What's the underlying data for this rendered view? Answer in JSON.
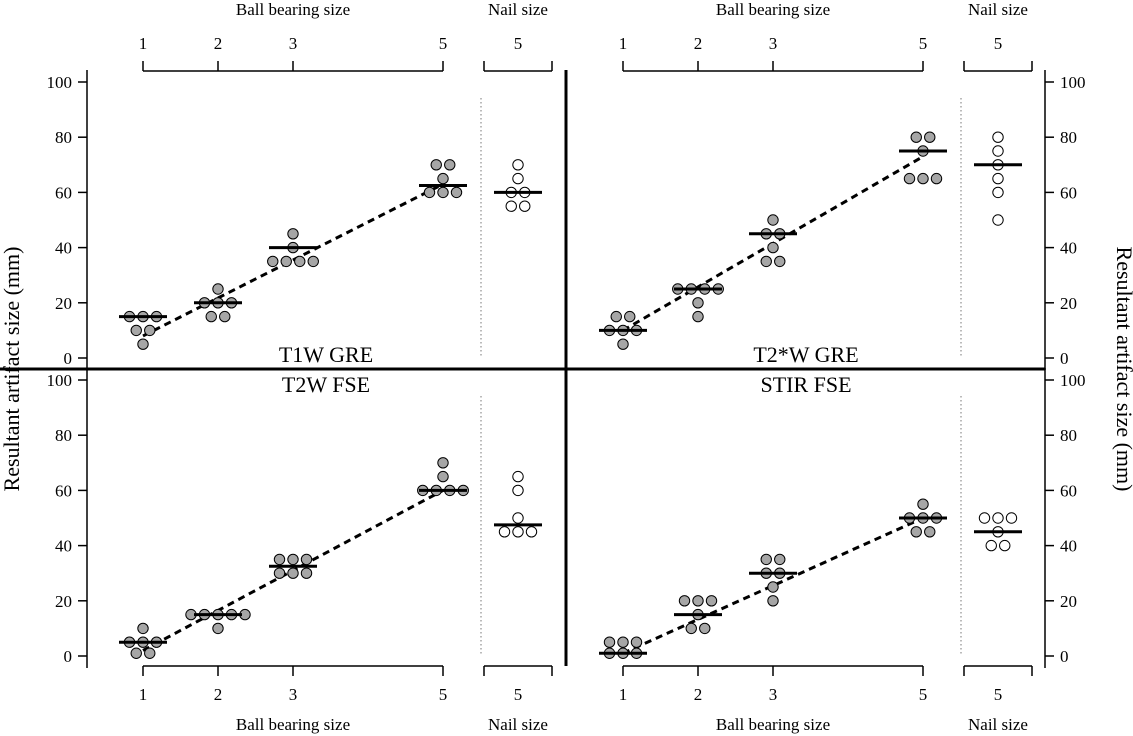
{
  "chart_data": {
    "type": "scatter",
    "ylabel": "Resultant artifact size (mm)",
    "xlabel_bearing": "Ball bearing size",
    "xlabel_nail": "Nail size",
    "ylim": [
      0,
      100
    ],
    "yticks": [
      0,
      20,
      40,
      60,
      80,
      100
    ],
    "bearing_sizes": [
      1,
      2,
      3,
      5
    ],
    "nail_sizes": [
      5
    ],
    "panels": [
      {
        "title": "T1W GRE",
        "bearing": {
          "1": [
            15,
            15,
            15,
            10,
            10,
            5
          ],
          "2": [
            20,
            20,
            20,
            25,
            15,
            15
          ],
          "3": [
            35,
            35,
            35,
            35,
            40,
            45
          ],
          "5": [
            60,
            60,
            60,
            65,
            70,
            70
          ]
        },
        "bearing_means": [
          15,
          20,
          40,
          62.5
        ],
        "nail": [
          60,
          60,
          55,
          55,
          65,
          70
        ],
        "nail_mean": 60,
        "trend": [
          [
            1,
            8
          ],
          [
            5,
            63
          ]
        ]
      },
      {
        "title": "T2*W GRE",
        "bearing": {
          "1": [
            10,
            10,
            10,
            15,
            15,
            5
          ],
          "2": [
            25,
            25,
            25,
            25,
            20,
            15
          ],
          "3": [
            45,
            45,
            40,
            35,
            35,
            50
          ],
          "5": [
            65,
            65,
            65,
            80,
            80,
            75
          ]
        },
        "bearing_means": [
          10,
          25,
          45,
          75
        ],
        "nail": [
          70,
          75,
          80,
          65,
          60,
          50
        ],
        "nail_mean": 70,
        "trend": [
          [
            1,
            10
          ],
          [
            5,
            73
          ]
        ]
      },
      {
        "title": "T2W FSE",
        "bearing": {
          "1": [
            5,
            5,
            5,
            10,
            1,
            1
          ],
          "2": [
            15,
            15,
            15,
            15,
            15,
            10
          ],
          "3": [
            30,
            30,
            30,
            35,
            35,
            35
          ],
          "5": [
            60,
            60,
            60,
            60,
            65,
            70
          ]
        },
        "bearing_means": [
          5,
          15,
          32.5,
          60
        ],
        "nail": [
          45,
          45,
          45,
          50,
          60,
          65
        ],
        "nail_mean": 47.5,
        "trend": [
          [
            1,
            2
          ],
          [
            5,
            60
          ]
        ]
      },
      {
        "title": "STIR FSE",
        "bearing": {
          "1": [
            1,
            1,
            1,
            5,
            5,
            5
          ],
          "2": [
            15,
            20,
            20,
            20,
            10,
            10
          ],
          "3": [
            30,
            30,
            25,
            20,
            35,
            35
          ],
          "5": [
            50,
            50,
            50,
            45,
            45,
            55
          ],
          "2_note": "",
          "3_note": ""
        },
        "bearing_means": [
          1,
          15,
          30,
          50
        ],
        "nail": [
          50,
          50,
          50,
          45,
          40,
          40
        ],
        "nail_mean": 45,
        "trend": [
          [
            1,
            1
          ],
          [
            5,
            50
          ]
        ]
      }
    ],
    "colors": {
      "bearing_fill": "#a6a6a6",
      "nail_fill": "#ffffff",
      "stroke": "#000000"
    }
  }
}
